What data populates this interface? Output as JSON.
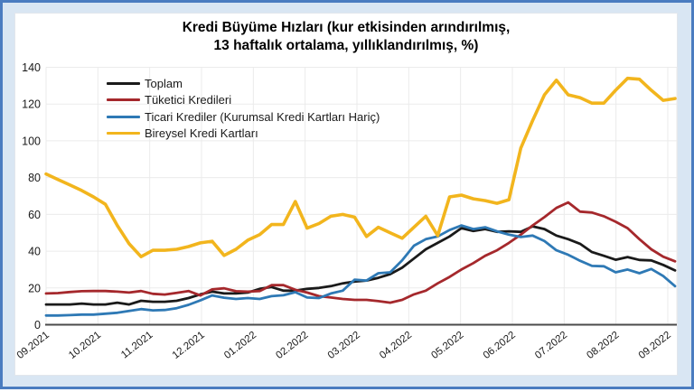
{
  "frame": {
    "outer_border_color": "#4a7cc0",
    "page_background": "#d9e6f3",
    "card_background": "#ffffff"
  },
  "chart_data": {
    "type": "line",
    "title_line1": "Kredi Büyüme Hızları (kur etkisinden arındırılmış,",
    "title_line2": "13 haftalık ortalama, yıllıklandırılmış, %)",
    "x_unit": "weekly points, Sep 2021 - Sep 2022",
    "x_tick_labels": [
      "09.2021",
      "10.2021",
      "11.2021",
      "12.2021",
      "01.2022",
      "02.2022",
      "03.2022",
      "04.2022",
      "05.2022",
      "06.2022",
      "07.2022",
      "08.2022",
      "09.2022"
    ],
    "y_ticks": [
      0,
      20,
      40,
      60,
      80,
      100,
      120,
      140
    ],
    "ylim": [
      0,
      140
    ],
    "grid": true,
    "legend_position": "top-left-inside",
    "axis_color": "#4a4a4a",
    "grid_color": "#ebebeb",
    "tick_label_color": "#1a1a1a",
    "series": [
      {
        "name": "Toplam",
        "color": "#1a1a1a",
        "values": [
          11,
          11,
          11,
          11.5,
          11,
          11,
          12,
          11,
          13,
          12.5,
          12.5,
          13,
          14.5,
          16.5,
          18,
          17,
          17,
          17.5,
          19.5,
          20.5,
          18.5,
          18.5,
          19.5,
          20,
          21,
          22.5,
          23.5,
          24,
          25.5,
          27.5,
          31,
          36,
          41,
          44.5,
          48,
          52.5,
          51,
          52,
          50.5,
          50.8,
          50.5,
          53.5,
          52,
          48.5,
          46.5,
          44,
          39.5,
          37.5,
          35.3,
          36.8,
          35.2,
          35,
          32.5,
          29.5
        ]
      },
      {
        "name": "Tüketici Kredileri",
        "color": "#a5282c",
        "values": [
          17,
          17.2,
          17.8,
          18.2,
          18.3,
          18.3,
          18,
          17.5,
          18.3,
          16.8,
          16.4,
          17.3,
          18.3,
          15.9,
          19.2,
          19.8,
          18.2,
          18,
          18.3,
          21.5,
          21.5,
          19,
          17.5,
          15.5,
          14.8,
          14,
          13.5,
          13.5,
          12.8,
          12,
          13.5,
          16.5,
          18.5,
          22.5,
          26,
          30,
          33.5,
          37.5,
          40.5,
          44.5,
          49,
          54,
          58.5,
          63.5,
          66.5,
          61.5,
          61,
          59,
          56,
          52.5,
          46.5,
          41,
          37,
          34.5
        ]
      },
      {
        "name": "Ticari Krediler (Kurumsal Kredi Kartları Hariç)",
        "color": "#2e79b5",
        "values": [
          5,
          5,
          5.2,
          5.5,
          5.5,
          6,
          6.5,
          7.5,
          8.5,
          7.8,
          8,
          9,
          10.8,
          13.2,
          15.9,
          14.7,
          14,
          14.5,
          14,
          15.5,
          16,
          17.7,
          14.8,
          14.5,
          17,
          18.5,
          24.5,
          24,
          28,
          28.5,
          35,
          43,
          46.5,
          48,
          51.5,
          54,
          52,
          53,
          50.8,
          49,
          47.7,
          48.5,
          45.5,
          40.5,
          38,
          34.8,
          32,
          31.8,
          28.5,
          30,
          28,
          30.3,
          26.5,
          21
        ]
      },
      {
        "name": "Bireysel Kredi Kartları",
        "color": "#f2b51d",
        "values": [
          82,
          79,
          76,
          73,
          69.5,
          65.5,
          54,
          44,
          37,
          40.5,
          40.5,
          41,
          42.5,
          44.5,
          45.4,
          37.7,
          41,
          46,
          49,
          54.5,
          54.5,
          67,
          52.5,
          55,
          59,
          60,
          58.5,
          48,
          53,
          50,
          47,
          53,
          59,
          48.5,
          69.5,
          70.5,
          68.5,
          67.5,
          66,
          68,
          96,
          111,
          125,
          133,
          125,
          123.5,
          120.5,
          120.5,
          127.5,
          134,
          133.5,
          127.5,
          122,
          123
        ]
      }
    ]
  }
}
